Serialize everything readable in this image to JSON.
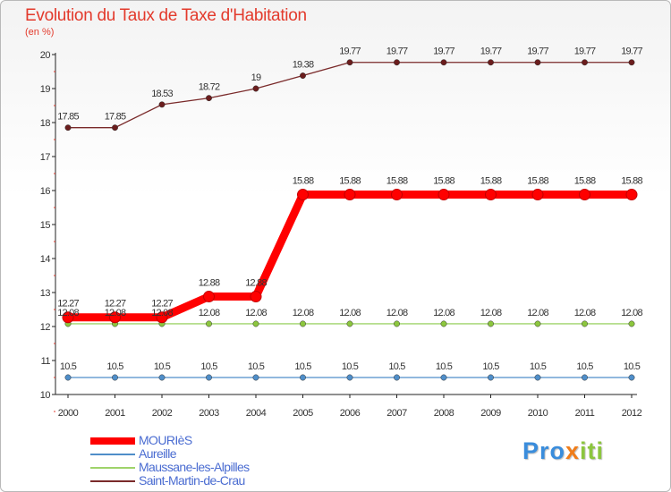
{
  "title": "Evolution du Taux de Taxe d'Habitation",
  "subtitle": "(en %)",
  "brand": {
    "part1": "Pro",
    "part2": "x",
    "part3": "iti"
  },
  "chart_data": {
    "type": "line",
    "title": "Evolution du Taux de Taxe d'Habitation",
    "ylabel": "(en %)",
    "xlabel": "",
    "x": [
      "2000",
      "2001",
      "2002",
      "2003",
      "2004",
      "2005",
      "2006",
      "2007",
      "2008",
      "2009",
      "2010",
      "2011",
      "2012"
    ],
    "ylim": [
      10,
      20
    ],
    "yticks": [
      "10",
      "11",
      "12",
      "13",
      "14",
      "15",
      "16",
      "17",
      "18",
      "19",
      "20"
    ],
    "grid": false,
    "legend_position": "bottom-left",
    "series": [
      {
        "name": "MOURIèS",
        "color": "#ff0000",
        "emphasis": true,
        "values": [
          12.27,
          12.27,
          12.27,
          12.88,
          12.88,
          15.88,
          15.88,
          15.88,
          15.88,
          15.88,
          15.88,
          15.88,
          15.88
        ],
        "labels": [
          "12.27",
          "12.27",
          "12.27",
          "12.88",
          "12.88",
          "15.88",
          "15.88",
          "15.88",
          "15.88",
          "15.88",
          "15.88",
          "15.88",
          "15.88"
        ]
      },
      {
        "name": "Aureille",
        "color": "#4f8ec9",
        "marker": "#4f8ec9",
        "values": [
          10.5,
          10.5,
          10.5,
          10.5,
          10.5,
          10.5,
          10.5,
          10.5,
          10.5,
          10.5,
          10.5,
          10.5,
          10.5
        ],
        "labels": [
          "10.5",
          "10.5",
          "10.5",
          "10.5",
          "10.5",
          "10.5",
          "10.5",
          "10.5",
          "10.5",
          "10.5",
          "10.5",
          "10.5",
          "10.5"
        ]
      },
      {
        "name": "Maussane-les-Alpilles",
        "color": "#9fd36a",
        "marker": "#8cc63e",
        "values": [
          12.08,
          12.08,
          12.08,
          12.08,
          12.08,
          12.08,
          12.08,
          12.08,
          12.08,
          12.08,
          12.08,
          12.08,
          12.08
        ],
        "labels": [
          "12.08",
          "12.08",
          "12.08",
          "12.08",
          "12.08",
          "12.08",
          "12.08",
          "12.08",
          "12.08",
          "12.08",
          "12.08",
          "12.08",
          "12.08"
        ]
      },
      {
        "name": "Saint-Martin-de-Crau",
        "color": "#7a2a2a",
        "marker": "#6b1d1d",
        "values": [
          17.85,
          17.85,
          18.53,
          18.72,
          19,
          19.38,
          19.77,
          19.77,
          19.77,
          19.77,
          19.77,
          19.77,
          19.77
        ],
        "labels": [
          "17.85",
          "17.85",
          "18.53",
          "18.72",
          "19",
          "19.38",
          "19.77",
          "19.77",
          "19.77",
          "19.77",
          "19.77",
          "19.77",
          "19.77"
        ]
      }
    ]
  }
}
